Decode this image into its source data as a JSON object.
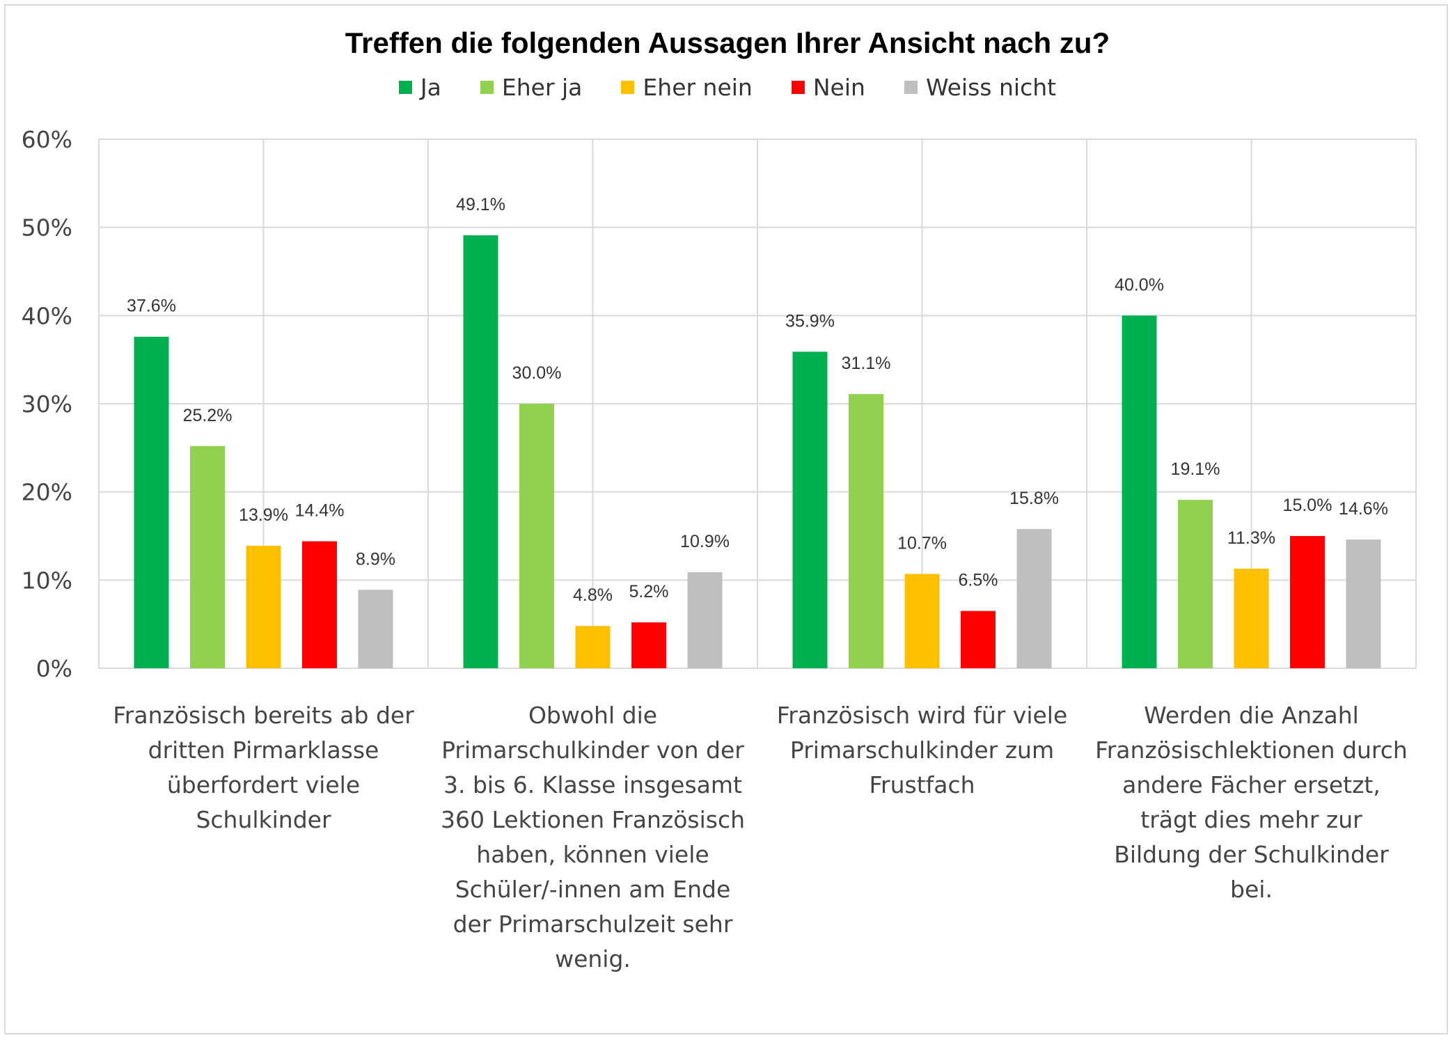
{
  "chart_data": {
    "type": "bar",
    "title": "Treffen die folgenden Aussagen Ihrer Ansicht nach zu?",
    "xlabel": "",
    "ylabel": "",
    "ylim": [
      0,
      60
    ],
    "yticks": [
      "0%",
      "10%",
      "20%",
      "30%",
      "40%",
      "50%",
      "60%"
    ],
    "grid": true,
    "legend_position": "top",
    "categories": [
      "Französisch bereits ab der dritten Pirmarklasse überfordert viele Schulkinder",
      "Obwohl die Primarschulkinder von der 3. bis 6. Klasse insgesamt 360 Lektionen Französisch haben, können viele Schüler/-innen am Ende der Primarschulzeit sehr wenig.",
      "Französisch wird für viele Primarschulkinder zum Frustfach",
      "Werden die Anzahl Französischlektionen durch andere Fächer ersetzt, trägt dies mehr zur Bildung der Schulkinder bei."
    ],
    "series": [
      {
        "name": "Ja",
        "color": "#00b050",
        "values": [
          37.6,
          49.1,
          35.9,
          40.0
        ],
        "labels": [
          "37.6%",
          "49.1%",
          "35.9%",
          "40.0%"
        ]
      },
      {
        "name": "Eher ja",
        "color": "#92d050",
        "values": [
          25.2,
          30.0,
          31.1,
          19.1
        ],
        "labels": [
          "25.2%",
          "30.0%",
          "31.1%",
          "19.1%"
        ]
      },
      {
        "name": "Eher nein",
        "color": "#ffc000",
        "values": [
          13.9,
          4.8,
          10.7,
          11.3
        ],
        "labels": [
          "13.9%",
          "4.8%",
          "10.7%",
          "11.3%"
        ]
      },
      {
        "name": "Nein",
        "color": "#ff0000",
        "values": [
          14.4,
          5.2,
          6.5,
          15.0
        ],
        "labels": [
          "14.4%",
          "5.2%",
          "6.5%",
          "15.0%"
        ]
      },
      {
        "name": "Weiss nicht",
        "color": "#bfbfbf",
        "values": [
          8.9,
          10.9,
          15.8,
          14.6
        ],
        "labels": [
          "8.9%",
          "10.9%",
          "15.8%",
          "14.6%"
        ]
      }
    ]
  }
}
